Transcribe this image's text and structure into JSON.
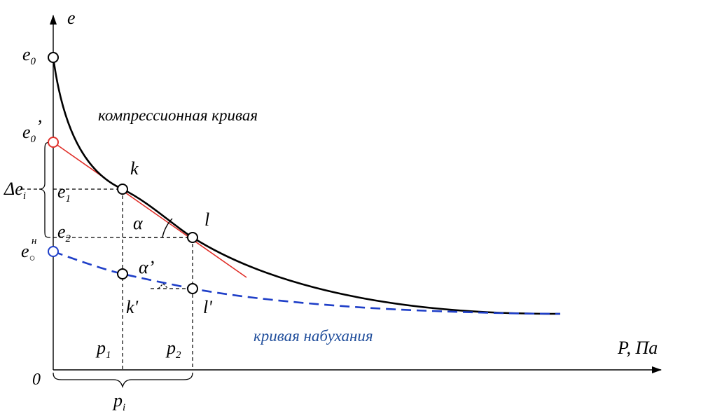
{
  "axes": {
    "y_label": "e",
    "x_label": "P, Па",
    "origin_label": "0"
  },
  "y_ticks": {
    "e0": {
      "base": "e",
      "sub": "0",
      "prime": ""
    },
    "e0_prime": {
      "base": "e",
      "sub": "0",
      "prime": "’"
    },
    "e0_n": {
      "base": "e",
      "sub": "○",
      "sup": "н"
    },
    "e1": {
      "base": "e",
      "sub": "1"
    },
    "e2": {
      "base": "e",
      "sub": "2"
    },
    "delta_ei": {
      "base": "Δe",
      "sub": "i"
    }
  },
  "x_ticks": {
    "p1": {
      "base": "p",
      "sub": "1"
    },
    "p2": {
      "base": "p",
      "sub": "2"
    },
    "pi": {
      "base": "p",
      "sub": "i"
    }
  },
  "points": {
    "k": "k",
    "l": "l",
    "k_prime": "k'",
    "l_prime": "l'"
  },
  "angles": {
    "alpha": "α",
    "alpha_prime": "α’"
  },
  "curves": {
    "compression_label": "компрессионная кривая",
    "swelling_label": "кривая набухания"
  },
  "colors": {
    "compression": "#000000",
    "tangent": "#e0302a",
    "swelling": "#1f3fc8",
    "swelling_label": "#1f4d9b"
  }
}
